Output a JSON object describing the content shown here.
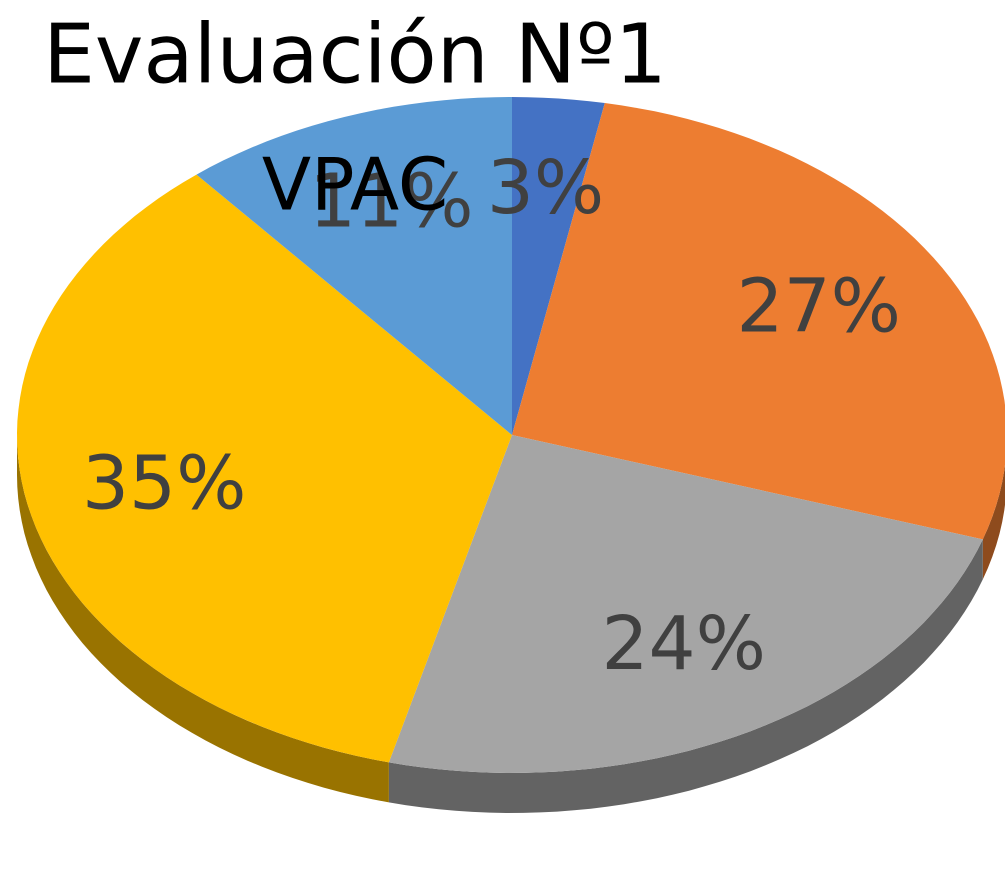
{
  "chart_data": {
    "type": "pie",
    "title": "Evaluación Nº1",
    "subtitle": "VPAC",
    "values": [
      3,
      27,
      24,
      35,
      11
    ],
    "value_labels": [
      "3%",
      "27%",
      "24%",
      "35%",
      "11%"
    ],
    "colors": [
      "#4472c4",
      "#ed7d31",
      "#a5a5a5",
      "#ffc000",
      "#5b9bd5"
    ]
  }
}
